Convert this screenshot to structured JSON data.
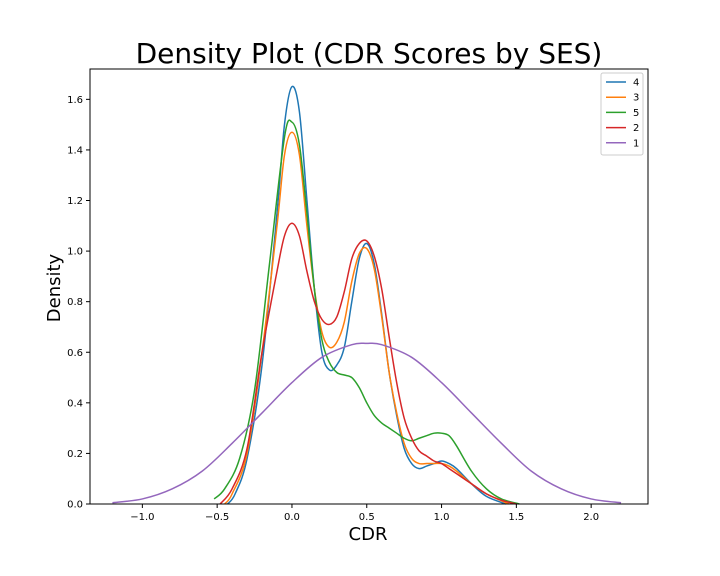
{
  "chart_data": {
    "type": "line",
    "title": "Density Plot (CDR Scores by SES)",
    "xlabel": "CDR",
    "ylabel": "Density",
    "xlim": [
      -1.35,
      2.38
    ],
    "ylim": [
      0,
      1.72
    ],
    "xticks": [
      -1.0,
      -0.5,
      0.0,
      0.5,
      1.0,
      1.5,
      2.0
    ],
    "xtick_labels": [
      "−1.0",
      "−0.5",
      "0.0",
      "0.5",
      "1.0",
      "1.5",
      "2.0"
    ],
    "yticks": [
      0.0,
      0.2,
      0.4,
      0.6,
      0.8,
      1.0,
      1.2,
      1.4,
      1.6
    ],
    "ytick_labels": [
      "0.0",
      "0.2",
      "0.4",
      "0.6",
      "0.8",
      "1.0",
      "1.2",
      "1.4",
      "1.6"
    ],
    "grid": false,
    "legend_position": "top-right",
    "series": [
      {
        "name": "4",
        "color": "#1f77b4",
        "x": [
          -0.43,
          -0.38,
          -0.3,
          -0.2,
          -0.1,
          -0.05,
          0.0,
          0.05,
          0.1,
          0.15,
          0.2,
          0.25,
          0.3,
          0.35,
          0.4,
          0.45,
          0.5,
          0.55,
          0.6,
          0.65,
          0.7,
          0.75,
          0.8,
          0.85,
          0.9,
          0.95,
          1.0,
          1.05,
          1.1,
          1.2,
          1.3,
          1.43
        ],
        "y": [
          0.0,
          0.04,
          0.18,
          0.55,
          1.15,
          1.5,
          1.65,
          1.55,
          1.2,
          0.85,
          0.6,
          0.53,
          0.55,
          0.62,
          0.8,
          0.97,
          1.03,
          0.95,
          0.75,
          0.52,
          0.35,
          0.22,
          0.16,
          0.14,
          0.15,
          0.16,
          0.17,
          0.16,
          0.14,
          0.08,
          0.03,
          0.0
        ]
      },
      {
        "name": "3",
        "color": "#ff7f0e",
        "x": [
          -0.45,
          -0.4,
          -0.3,
          -0.2,
          -0.1,
          -0.05,
          0.0,
          0.05,
          0.1,
          0.15,
          0.2,
          0.25,
          0.3,
          0.35,
          0.4,
          0.45,
          0.5,
          0.55,
          0.6,
          0.65,
          0.7,
          0.75,
          0.8,
          0.85,
          0.9,
          0.95,
          1.0,
          1.05,
          1.1,
          1.2,
          1.3,
          1.45
        ],
        "y": [
          0.0,
          0.04,
          0.2,
          0.6,
          1.1,
          1.38,
          1.47,
          1.38,
          1.1,
          0.85,
          0.68,
          0.62,
          0.64,
          0.72,
          0.88,
          0.99,
          1.01,
          0.93,
          0.74,
          0.52,
          0.36,
          0.24,
          0.18,
          0.16,
          0.16,
          0.16,
          0.16,
          0.15,
          0.13,
          0.08,
          0.04,
          0.0
        ]
      },
      {
        "name": "5",
        "color": "#2ca02c",
        "x": [
          -0.52,
          -0.45,
          -0.35,
          -0.25,
          -0.15,
          -0.05,
          0.0,
          0.05,
          0.1,
          0.15,
          0.2,
          0.25,
          0.3,
          0.35,
          0.4,
          0.45,
          0.5,
          0.55,
          0.6,
          0.65,
          0.7,
          0.75,
          0.8,
          0.85,
          0.9,
          0.95,
          1.0,
          1.05,
          1.1,
          1.2,
          1.3,
          1.4,
          1.52
        ],
        "y": [
          0.02,
          0.06,
          0.18,
          0.45,
          0.95,
          1.45,
          1.51,
          1.42,
          1.15,
          0.85,
          0.65,
          0.56,
          0.52,
          0.51,
          0.5,
          0.46,
          0.4,
          0.35,
          0.32,
          0.3,
          0.28,
          0.26,
          0.25,
          0.26,
          0.27,
          0.28,
          0.28,
          0.27,
          0.23,
          0.13,
          0.06,
          0.02,
          0.0
        ]
      },
      {
        "name": "2",
        "color": "#d62728",
        "x": [
          -0.48,
          -0.4,
          -0.3,
          -0.2,
          -0.1,
          -0.05,
          0.0,
          0.05,
          0.1,
          0.15,
          0.2,
          0.25,
          0.3,
          0.35,
          0.4,
          0.45,
          0.5,
          0.55,
          0.6,
          0.65,
          0.7,
          0.75,
          0.8,
          0.85,
          0.9,
          0.95,
          1.0,
          1.05,
          1.1,
          1.2,
          1.3,
          1.4,
          1.5
        ],
        "y": [
          0.0,
          0.06,
          0.22,
          0.6,
          0.92,
          1.06,
          1.11,
          1.06,
          0.92,
          0.8,
          0.73,
          0.71,
          0.74,
          0.84,
          0.97,
          1.03,
          1.04,
          0.98,
          0.85,
          0.66,
          0.48,
          0.34,
          0.26,
          0.21,
          0.19,
          0.17,
          0.16,
          0.14,
          0.12,
          0.08,
          0.04,
          0.015,
          0.0
        ]
      },
      {
        "name": "1",
        "color": "#9467bd",
        "x": [
          -1.2,
          -1.0,
          -0.8,
          -0.6,
          -0.4,
          -0.2,
          0.0,
          0.2,
          0.4,
          0.5,
          0.6,
          0.8,
          1.0,
          1.2,
          1.4,
          1.6,
          1.8,
          2.0,
          2.2
        ],
        "y": [
          0.005,
          0.02,
          0.06,
          0.13,
          0.24,
          0.36,
          0.48,
          0.58,
          0.63,
          0.635,
          0.63,
          0.58,
          0.48,
          0.36,
          0.24,
          0.13,
          0.06,
          0.02,
          0.005
        ]
      }
    ]
  }
}
